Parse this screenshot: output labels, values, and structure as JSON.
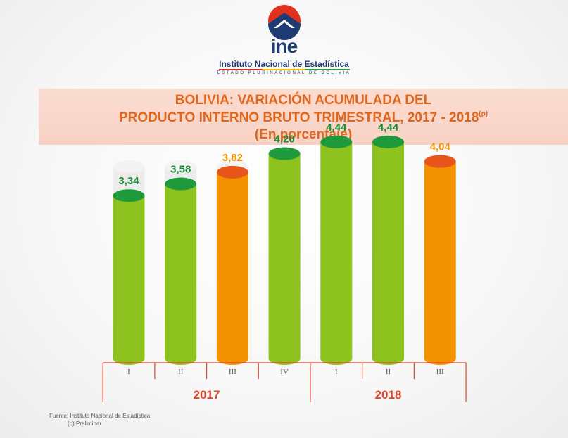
{
  "logo": {
    "word": "ine",
    "institution": "Instituto Nacional de Estadística",
    "subtitle": "ESTADO PLURINACIONAL DE BOLIVIA"
  },
  "title": {
    "line1": "BOLIVIA: VARIACIÓN ACUMULADA DEL",
    "line2": "PRODUCTO INTERNO BRUTO TRIMESTRAL, 2017 - 2018",
    "line2_sup": "(p)",
    "line3": "(En porcentaje)"
  },
  "chart_data": {
    "type": "bar",
    "title": "BOLIVIA: VARIACIÓN ACUMULADA DEL PRODUCTO INTERNO BRUTO TRIMESTRAL, 2017 - 2018(p)",
    "subtitle": "(En porcentaje)",
    "categories": [
      "I",
      "II",
      "III",
      "IV",
      "I",
      "II",
      "III"
    ],
    "groups": [
      {
        "label": "2017",
        "categories": [
          "I",
          "II",
          "III",
          "IV"
        ]
      },
      {
        "label": "2018",
        "categories": [
          "I",
          "II",
          "III"
        ]
      }
    ],
    "values": [
      3.34,
      3.58,
      3.82,
      4.2,
      4.44,
      4.44,
      4.04
    ],
    "value_labels": [
      "3,34",
      "3,58",
      "3,82",
      "4,20",
      "4,44",
      "4,44",
      "4,04"
    ],
    "highlight": [
      false,
      false,
      true,
      false,
      false,
      false,
      true
    ],
    "ylim": [
      0,
      5
    ],
    "grid": false,
    "legend": "none",
    "colors": {
      "green": "#8dc21f",
      "green_top": "#1e9a3c",
      "green_label": "#1e8a36",
      "orange": "#f39200",
      "orange_top": "#e8561c",
      "orange_label": "#f39200",
      "track": "#ececec",
      "axis": "#e0452a",
      "year_label": "#e0452a"
    }
  },
  "source": {
    "line1": "Fuente: Instituto Nacional de Estadística",
    "line2": "(p) Preliminar"
  }
}
